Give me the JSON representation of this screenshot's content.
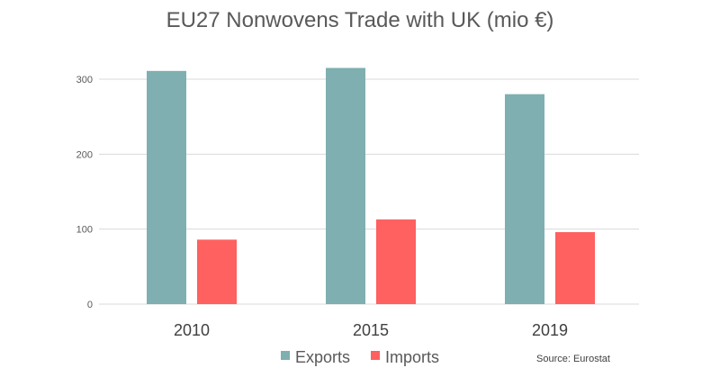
{
  "chart_data": {
    "type": "bar",
    "title": "EU27 Nonwovens Trade with UK (mio €)",
    "categories": [
      "2010",
      "2015",
      "2019"
    ],
    "series": [
      {
        "name": "Exports",
        "color": "#7FAFB0",
        "values": [
          311,
          315,
          280
        ]
      },
      {
        "name": "Imports",
        "color": "#FF6060",
        "values": [
          86,
          113,
          96
        ]
      }
    ],
    "xlabel": "",
    "ylabel": "",
    "ylim": [
      0,
      330
    ],
    "y_ticks": [
      0,
      100,
      200,
      300
    ],
    "grid": true,
    "legend_position": "bottom",
    "source": "Source: Eurostat"
  }
}
